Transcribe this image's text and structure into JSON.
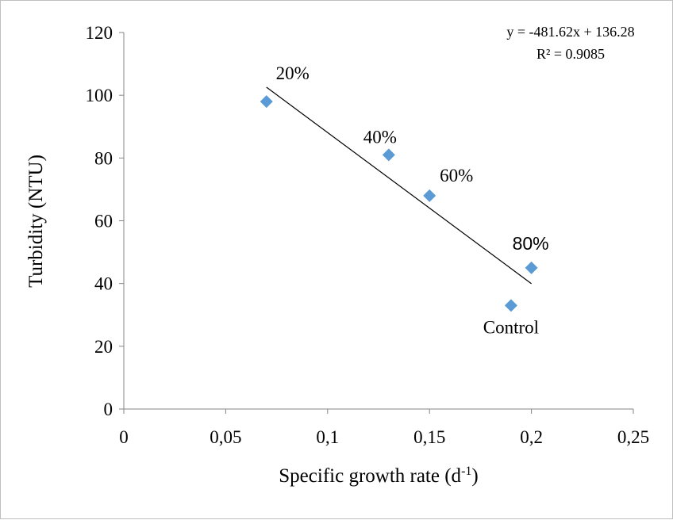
{
  "chart_data": {
    "type": "scatter",
    "xlabel": "Specific growth rate (d",
    "xlabel_superscript": "-1",
    "xlabel_suffix": ")",
    "ylabel": "Turbidity (NTU)",
    "xlim": [
      0,
      0.25
    ],
    "ylim": [
      0,
      120
    ],
    "x_ticks": [
      0,
      0.05,
      0.1,
      0.15,
      0.2,
      0.25
    ],
    "x_tick_labels": [
      "0",
      "0,05",
      "0,1",
      "0,15",
      "0,2",
      "0,25"
    ],
    "y_ticks": [
      0,
      20,
      40,
      60,
      80,
      100,
      120
    ],
    "y_tick_labels": [
      "0",
      "20",
      "40",
      "60",
      "80",
      "100",
      "120"
    ],
    "grid": false,
    "legend": false,
    "marker": "diamond",
    "marker_color": "#5b9bd5",
    "points": [
      {
        "x": 0.07,
        "y": 98,
        "label": "20%"
      },
      {
        "x": 0.13,
        "y": 81,
        "label": "40%"
      },
      {
        "x": 0.15,
        "y": 68,
        "label": "60%"
      },
      {
        "x": 0.2,
        "y": 45,
        "label": "80%"
      },
      {
        "x": 0.19,
        "y": 33,
        "label": "Control"
      }
    ],
    "trendline": {
      "type": "linear",
      "slope": -481.62,
      "intercept": 136.28,
      "x_range": [
        0.07,
        0.2
      ],
      "equation": "y = -481.62x + 136.28",
      "r_squared": "R² = 0.9085"
    }
  }
}
